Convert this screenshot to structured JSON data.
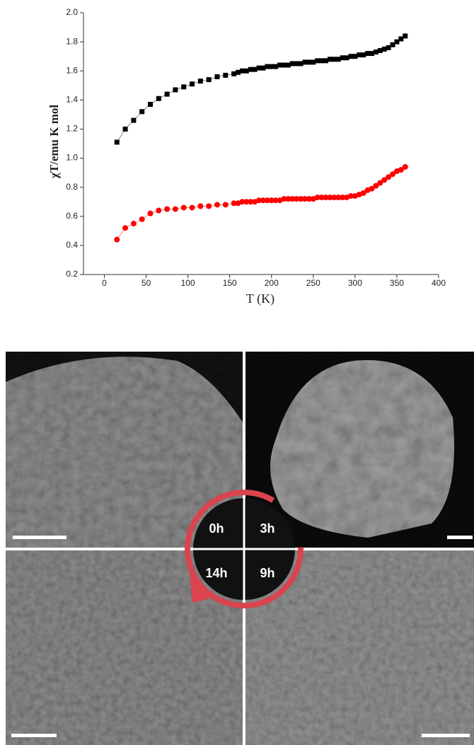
{
  "chart_data": {
    "type": "line",
    "xlabel": "T (K)",
    "ylabel": "χT/emu K mol",
    "x": [
      15,
      25,
      35,
      45,
      55,
      65,
      75,
      85,
      95,
      105,
      115,
      125,
      135,
      145,
      155,
      160,
      165,
      170,
      175,
      180,
      185,
      190,
      195,
      200,
      205,
      210,
      215,
      220,
      225,
      230,
      235,
      240,
      245,
      250,
      255,
      260,
      265,
      270,
      275,
      280,
      285,
      290,
      295,
      300,
      305,
      310,
      315,
      320,
      325,
      330,
      335,
      340,
      345,
      350,
      355,
      360
    ],
    "series": [
      {
        "color": "#000000",
        "marker": "square",
        "values": [
          1.11,
          1.2,
          1.26,
          1.32,
          1.37,
          1.41,
          1.44,
          1.47,
          1.49,
          1.51,
          1.53,
          1.54,
          1.56,
          1.57,
          1.58,
          1.59,
          1.6,
          1.6,
          1.61,
          1.61,
          1.62,
          1.62,
          1.63,
          1.63,
          1.63,
          1.64,
          1.64,
          1.64,
          1.65,
          1.65,
          1.65,
          1.66,
          1.66,
          1.66,
          1.67,
          1.67,
          1.67,
          1.68,
          1.68,
          1.68,
          1.69,
          1.69,
          1.7,
          1.7,
          1.71,
          1.71,
          1.72,
          1.72,
          1.73,
          1.74,
          1.75,
          1.76,
          1.78,
          1.8,
          1.82,
          1.84
        ]
      },
      {
        "color": "#ff0000",
        "marker": "circle",
        "values": [
          0.44,
          0.52,
          0.55,
          0.58,
          0.62,
          0.64,
          0.65,
          0.65,
          0.66,
          0.66,
          0.67,
          0.67,
          0.68,
          0.68,
          0.69,
          0.69,
          0.7,
          0.7,
          0.7,
          0.7,
          0.71,
          0.71,
          0.71,
          0.71,
          0.71,
          0.71,
          0.72,
          0.72,
          0.72,
          0.72,
          0.72,
          0.72,
          0.72,
          0.72,
          0.73,
          0.73,
          0.73,
          0.73,
          0.73,
          0.73,
          0.73,
          0.73,
          0.74,
          0.74,
          0.75,
          0.76,
          0.78,
          0.79,
          0.81,
          0.83,
          0.85,
          0.87,
          0.89,
          0.91,
          0.92,
          0.94
        ]
      }
    ],
    "xlim": [
      -25,
      400
    ],
    "xticks": [
      0,
      50,
      100,
      150,
      200,
      250,
      300,
      350,
      400
    ],
    "ylim": [
      0.2,
      2.0
    ],
    "yticks": [
      0.2,
      0.4,
      0.6,
      0.8,
      {
        "value": 1,
        "label": "1.0"
      },
      1.2,
      1.4,
      1.6,
      1.8,
      {
        "value": 2,
        "label": "2.0"
      }
    ]
  },
  "sem_panels": {
    "labels": [
      "0h",
      "3h",
      "14h",
      "9h"
    ]
  }
}
